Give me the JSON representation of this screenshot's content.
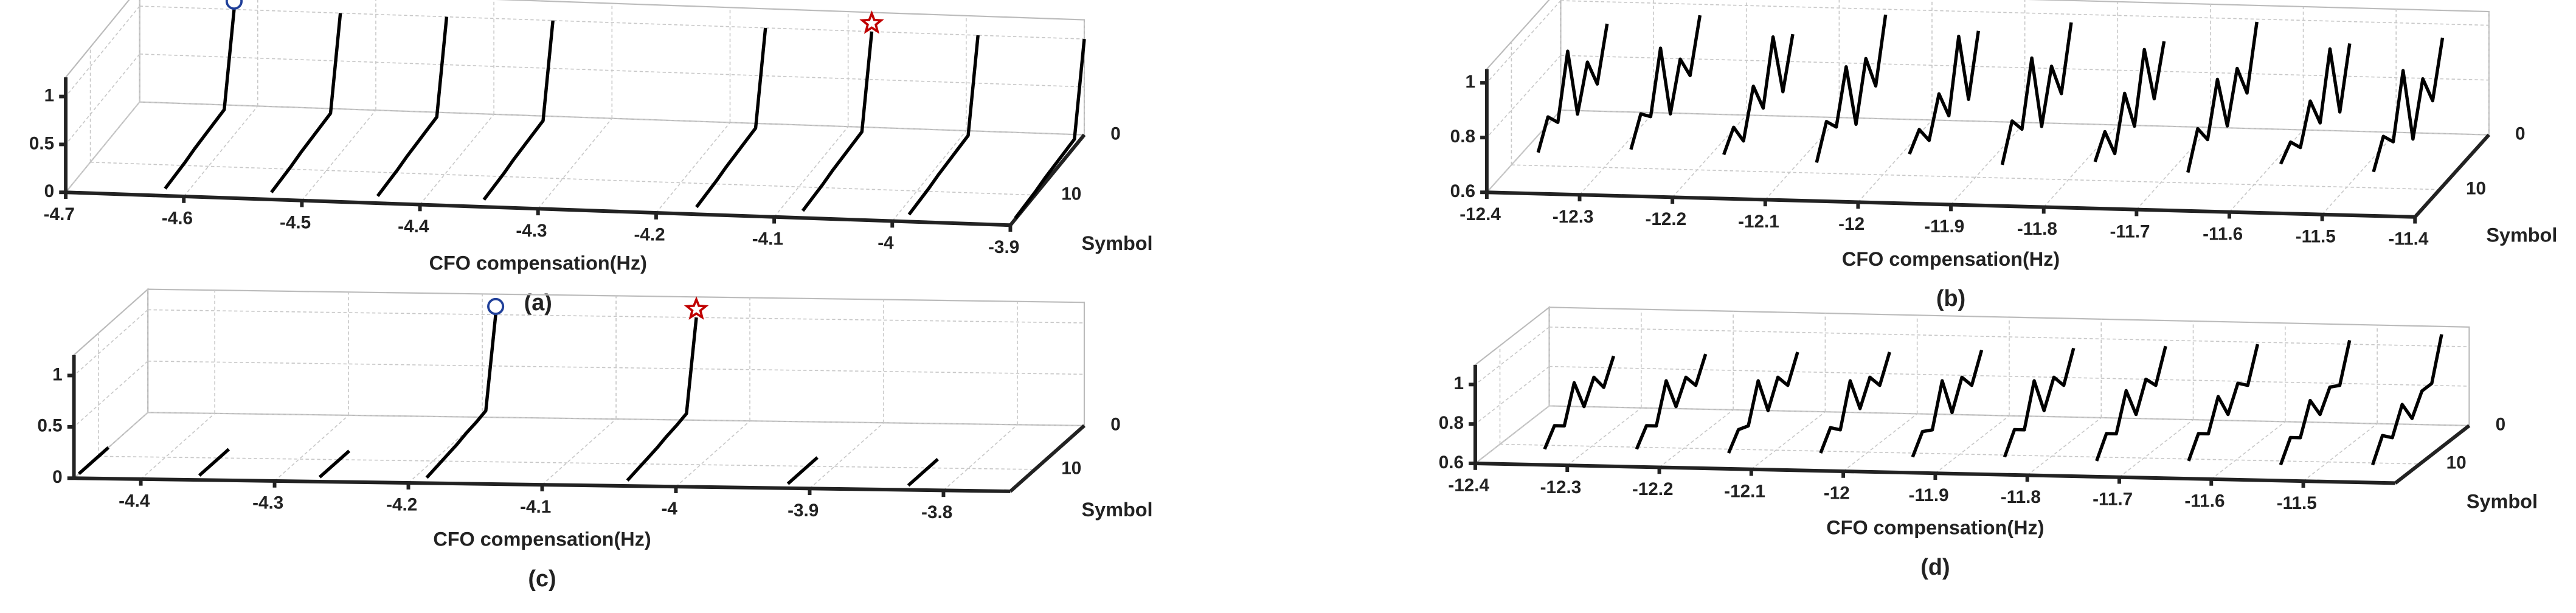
{
  "chart_data": [
    {
      "type": "line3d",
      "caption": "(a)",
      "xlabel": "CFO compensation(Hz)",
      "ylabel": "Symbol",
      "xlim": [
        -4.7,
        -3.9
      ],
      "xticks": [
        -4.7,
        -4.6,
        -4.5,
        -4.4,
        -4.3,
        -4.2,
        -4.1,
        -4,
        -3.9
      ],
      "ylim": [
        0,
        15
      ],
      "yticks": [
        0,
        10
      ],
      "zlim": [
        0,
        1.2
      ],
      "zticks": [
        0,
        0.5,
        1
      ],
      "symbols": [
        0,
        2,
        4,
        6,
        8,
        10,
        12,
        14
      ],
      "series": [
        {
          "x": -4.62,
          "color": "#000000",
          "values": [
            1,
            0.08,
            0.07,
            0.06,
            0.05,
            0.03,
            0.02,
            0.01
          ]
        },
        {
          "x": -4.53,
          "color": "#000000",
          "values": [
            1,
            0.08,
            0.07,
            0.06,
            0.05,
            0.03,
            0.02,
            0.01
          ]
        },
        {
          "x": -4.44,
          "color": "#000000",
          "values": [
            1,
            0.08,
            0.07,
            0.06,
            0.05,
            0.03,
            0.02,
            0.01
          ]
        },
        {
          "x": -4.35,
          "color": "#000000",
          "values": [
            1,
            0.08,
            0.07,
            0.06,
            0.05,
            0.03,
            0.02,
            0.01
          ]
        },
        {
          "x": -4.17,
          "color": "#000000",
          "values": [
            1,
            0.08,
            0.07,
            0.06,
            0.05,
            0.03,
            0.02,
            0.01
          ]
        },
        {
          "x": -4.08,
          "color": "#000000",
          "values": [
            1,
            0.08,
            0.07,
            0.06,
            0.05,
            0.03,
            0.02,
            0.01
          ]
        },
        {
          "x": -3.99,
          "color": "#000000",
          "values": [
            1,
            0.08,
            0.07,
            0.06,
            0.05,
            0.03,
            0.02,
            0.01
          ]
        },
        {
          "x": -3.9,
          "color": "#000000",
          "values": [
            1,
            0.08,
            0.07,
            0.06,
            0.05,
            0.03,
            0.02,
            0.01
          ]
        }
      ],
      "markers": [
        {
          "x": -4.62,
          "symbol": 0,
          "value": 1,
          "shape": "circle",
          "color": "#1f3f99"
        },
        {
          "x": -4.08,
          "symbol": 0,
          "value": 1,
          "shape": "star",
          "color": "#c00000"
        }
      ]
    },
    {
      "type": "line3d",
      "caption": "(b)",
      "xlabel": "CFO compensation(Hz)",
      "ylabel": "Symbol",
      "xlim": [
        -12.4,
        -11.4
      ],
      "xticks": [
        -12.4,
        -12.3,
        -12.2,
        -12.1,
        -12,
        -11.9,
        -11.8,
        -11.7,
        -11.6,
        -11.5,
        -11.4
      ],
      "ylim": [
        0,
        15
      ],
      "yticks": [
        0,
        10
      ],
      "zlim": [
        0.6,
        1.05
      ],
      "zticks": [
        0.6,
        0.8,
        1
      ],
      "symbols": [
        0,
        2,
        4,
        6,
        8,
        10,
        12,
        14
      ],
      "series": [
        {
          "x": -12.35,
          "color": "#000000",
          "values": [
            0.92,
            0.74,
            0.86,
            0.71,
            0.98,
            0.76,
            0.82,
            0.73
          ]
        },
        {
          "x": -12.25,
          "color": "#000000",
          "values": [
            0.96,
            0.78,
            0.88,
            0.72,
            1.0,
            0.79,
            0.84,
            0.75
          ]
        },
        {
          "x": -12.15,
          "color": "#000000",
          "values": [
            0.9,
            0.73,
            0.97,
            0.75,
            0.87,
            0.71,
            0.8,
            0.74
          ]
        },
        {
          "x": -12.05,
          "color": "#000000",
          "values": [
            0.98,
            0.76,
            0.9,
            0.7,
            0.95,
            0.77,
            0.83,
            0.72
          ]
        },
        {
          "x": -11.95,
          "color": "#000000",
          "values": [
            0.93,
            0.72,
            0.99,
            0.74,
            0.86,
            0.73,
            0.81,
            0.76
          ]
        },
        {
          "x": -11.85,
          "color": "#000000",
          "values": [
            0.97,
            0.75,
            0.89,
            0.71,
            1.0,
            0.78,
            0.85,
            0.73
          ]
        },
        {
          "x": -11.75,
          "color": "#000000",
          "values": [
            0.91,
            0.74,
            0.96,
            0.72,
            0.88,
            0.7,
            0.82,
            0.75
          ]
        },
        {
          "x": -11.65,
          "color": "#000000",
          "values": [
            0.99,
            0.77,
            0.9,
            0.73,
            0.94,
            0.76,
            0.84,
            0.72
          ]
        },
        {
          "x": -11.55,
          "color": "#000000",
          "values": [
            0.92,
            0.71,
            0.98,
            0.75,
            0.87,
            0.74,
            0.8,
            0.76
          ]
        },
        {
          "x": -11.45,
          "color": "#000000",
          "values": [
            0.95,
            0.76,
            0.88,
            0.7,
            0.99,
            0.77,
            0.83,
            0.74
          ]
        }
      ]
    },
    {
      "type": "line3d",
      "caption": "(c)",
      "xlabel": "CFO compensation(Hz)",
      "ylabel": "Symbol",
      "xlim": [
        -4.45,
        -3.75
      ],
      "xticks": [
        -4.4,
        -4.3,
        -4.2,
        -4.1,
        -4,
        -3.9,
        -3.8
      ],
      "ylim": [
        0,
        15
      ],
      "yticks": [
        0,
        10
      ],
      "zlim": [
        0,
        1.2
      ],
      "zticks": [
        0,
        0.5,
        1
      ],
      "symbols": [
        0,
        2,
        4,
        6,
        8,
        10,
        12,
        14
      ],
      "series": [
        {
          "x": -4.45,
          "color": "#000000",
          "values": [
            null,
            null,
            null,
            null,
            0,
            0,
            0,
            0
          ]
        },
        {
          "x": -4.36,
          "color": "#000000",
          "values": [
            null,
            null,
            null,
            null,
            0,
            0,
            0,
            0
          ]
        },
        {
          "x": -4.27,
          "color": "#000000",
          "values": [
            null,
            null,
            null,
            null,
            0,
            0,
            0,
            0
          ]
        },
        {
          "x": -4.19,
          "color": "#000000",
          "values": [
            1,
            0.15,
            0.12,
            0.1,
            0.07,
            0.05,
            0.03,
            0.01
          ]
        },
        {
          "x": -4.04,
          "color": "#000000",
          "values": [
            1,
            0.15,
            0.12,
            0.1,
            0.07,
            0.05,
            0.03,
            0.01
          ]
        },
        {
          "x": -3.92,
          "color": "#000000",
          "values": [
            null,
            null,
            null,
            null,
            0,
            0,
            0,
            0
          ]
        },
        {
          "x": -3.83,
          "color": "#000000",
          "values": [
            null,
            null,
            null,
            null,
            0,
            0,
            0,
            0
          ]
        }
      ],
      "markers": [
        {
          "x": -4.19,
          "symbol": 0,
          "value": 1,
          "shape": "circle",
          "color": "#1f3f99"
        },
        {
          "x": -4.04,
          "symbol": 0,
          "value": 1,
          "shape": "star",
          "color": "#c00000"
        }
      ]
    },
    {
      "type": "line3d",
      "caption": "(d)",
      "xlabel": "CFO compensation(Hz)",
      "ylabel": "Symbol",
      "xlim": [
        -12.4,
        -11.4
      ],
      "xticks": [
        -12.4,
        -12.3,
        -12.2,
        -12.1,
        -12,
        -11.9,
        -11.8,
        -11.7,
        -11.6,
        -11.5
      ],
      "ylim": [
        0,
        15
      ],
      "yticks": [
        0,
        10
      ],
      "zlim": [
        0.6,
        1.1
      ],
      "zticks": [
        0.6,
        0.8,
        1
      ],
      "symbols": [
        0,
        2,
        4,
        6,
        8,
        10,
        12,
        14
      ],
      "series": [
        {
          "x": -12.33,
          "color": "#000000",
          "values": [
            0.86,
            0.74,
            0.83,
            0.72,
            0.88,
            0.7,
            0.74,
            0.66
          ]
        },
        {
          "x": -12.23,
          "color": "#000000",
          "values": [
            0.88,
            0.76,
            0.84,
            0.73,
            0.9,
            0.71,
            0.75,
            0.67
          ]
        },
        {
          "x": -12.13,
          "color": "#000000",
          "values": [
            0.9,
            0.77,
            0.85,
            0.72,
            0.91,
            0.72,
            0.74,
            0.66
          ]
        },
        {
          "x": -12.03,
          "color": "#000000",
          "values": [
            0.91,
            0.78,
            0.86,
            0.74,
            0.92,
            0.71,
            0.76,
            0.67
          ]
        },
        {
          "x": -11.93,
          "color": "#000000",
          "values": [
            0.93,
            0.79,
            0.87,
            0.73,
            0.93,
            0.72,
            0.75,
            0.66
          ]
        },
        {
          "x": -11.83,
          "color": "#000000",
          "values": [
            0.95,
            0.8,
            0.88,
            0.75,
            0.94,
            0.73,
            0.77,
            0.67
          ]
        },
        {
          "x": -11.73,
          "color": "#000000",
          "values": [
            0.97,
            0.81,
            0.88,
            0.74,
            0.9,
            0.72,
            0.76,
            0.66
          ]
        },
        {
          "x": -11.63,
          "color": "#000000",
          "values": [
            0.99,
            0.82,
            0.87,
            0.75,
            0.88,
            0.73,
            0.77,
            0.67
          ]
        },
        {
          "x": -11.53,
          "color": "#000000",
          "values": [
            1.02,
            0.83,
            0.86,
            0.76,
            0.87,
            0.72,
            0.76,
            0.66
          ]
        },
        {
          "x": -11.43,
          "color": "#000000",
          "values": [
            1.06,
            0.85,
            0.85,
            0.75,
            0.86,
            0.73,
            0.78,
            0.67
          ]
        }
      ]
    }
  ]
}
